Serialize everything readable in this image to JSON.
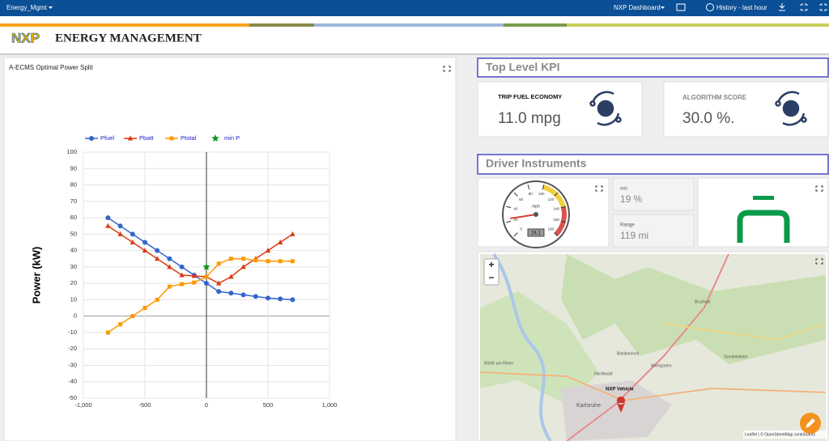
{
  "topbar": {
    "dashboard": "Energy_Mgmt",
    "menu": "NXP Dashboard",
    "history": "History - last hour"
  },
  "header": {
    "logo": "NXP",
    "title": "ENERGY MANAGEMENT"
  },
  "chart_data": {
    "type": "line",
    "title": "A-ECMS Optimal Power Split",
    "y_label": "Power (kW)",
    "x": [
      -800,
      -700,
      -600,
      -500,
      -400,
      -300,
      -200,
      -100,
      0,
      100,
      200,
      300,
      400,
      500,
      600,
      700
    ],
    "series": [
      {
        "name": "Pfuel",
        "color": "#3366cc",
        "marker": "circle",
        "values": [
          60,
          55,
          50,
          45,
          40,
          35,
          30,
          25,
          20,
          15,
          14,
          13,
          12,
          11,
          10.5,
          10
        ]
      },
      {
        "name": "Pbatt",
        "color": "#dc3912",
        "marker": "triangle",
        "values": [
          55,
          50,
          45,
          40,
          35,
          30,
          25,
          24.5,
          24,
          20,
          24,
          30,
          35,
          40,
          45,
          50
        ]
      },
      {
        "name": "Ptotal",
        "color": "#ff9900",
        "marker": "square",
        "values": [
          -10,
          -5,
          0,
          5,
          10,
          18,
          19.5,
          20.5,
          24,
          32,
          35,
          35,
          34,
          33.5,
          33.5,
          33.5
        ]
      },
      {
        "name": "min P",
        "color": "#109618",
        "marker": "star",
        "line": false,
        "x": [
          0
        ],
        "values": [
          30
        ]
      }
    ],
    "xlim": [
      -1000,
      1000
    ],
    "xticks": [
      {
        "value": -1000,
        "label": "-1,000"
      },
      -500,
      0,
      500,
      {
        "value": 1000,
        "label": "1,000"
      }
    ],
    "ylim": [
      -50,
      100
    ],
    "yticks": [
      -50,
      -40,
      -30,
      -20,
      -10,
      0,
      10,
      20,
      30,
      40,
      50,
      60,
      70,
      80,
      90,
      100
    ],
    "grid": true,
    "legend": "top"
  },
  "kpi": {
    "title": "Top Level KPI",
    "cards": [
      {
        "label": "TRIP FUEL ECONOMY",
        "value": "11.0 mpg"
      },
      {
        "label": "ALGORITHM SCORE",
        "value": "30.0 %."
      }
    ]
  },
  "instruments": {
    "title": "Driver Instruments",
    "gauge": {
      "unit": "mph",
      "value": 24.1,
      "min": 0,
      "max": 180,
      "ticks": [
        0,
        20,
        40,
        60,
        80,
        100,
        120,
        140,
        160,
        180
      ]
    },
    "soc": {
      "label": "soc",
      "value": "19 %"
    },
    "range": {
      "label": "Range",
      "value": "119 mi"
    }
  },
  "map": {
    "zoom_in": "+",
    "zoom_out": "−",
    "vehicle": "NXP Vehicle",
    "attribution": "Leaflet | © OpenStreetMap contributors",
    "labels": [
      "Karlsruhe",
      "Bruchsal",
      "Blankenloch",
      "Weingarten",
      "Gondelsheim",
      "Hardtwald",
      "Wörth am Rhein"
    ]
  }
}
